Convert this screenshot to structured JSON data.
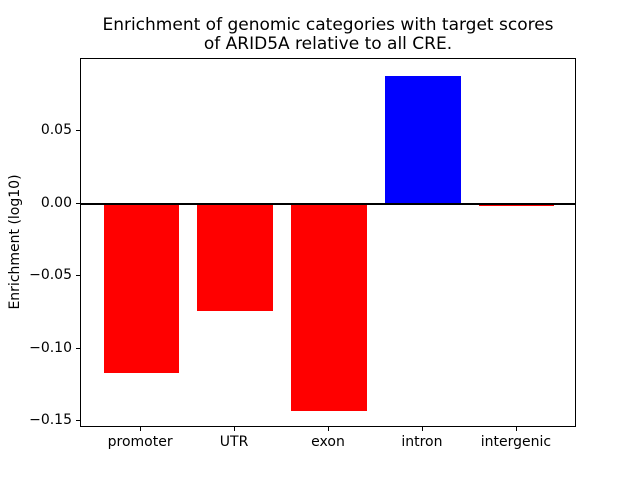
{
  "figure": {
    "title_line1": "Enrichment of genomic categories with target scores",
    "title_line2": "of ARID5A relative to all CRE.",
    "ylabel": "Enrichment (log10)",
    "background": "#ffffff",
    "spine_color": "#000000",
    "zero_line_color": "#000000"
  },
  "chart_data": {
    "type": "bar",
    "title": "Enrichment of genomic categories with target scores of ARID5A relative to all CRE.",
    "xlabel": "",
    "ylabel": "Enrichment (log10)",
    "categories": [
      "promoter",
      "UTR",
      "exon",
      "intron",
      "intergenic"
    ],
    "values": [
      -0.117,
      -0.074,
      -0.143,
      0.088,
      -0.002
    ],
    "bar_colors": [
      "#ff0000",
      "#ff0000",
      "#ff0000",
      "#0000ff",
      "#ff0000"
    ],
    "bar_width": 0.8,
    "xlim": [
      -0.64,
      4.64
    ],
    "ylim": [
      -0.1546,
      0.0996
    ],
    "ytick_values": [
      0.05,
      0.0,
      -0.05,
      -0.1,
      -0.15
    ],
    "ytick_labels": [
      "0.05",
      "0.00",
      "−0.05",
      "−0.10",
      "−0.15"
    ],
    "zero_line": true,
    "grid": false,
    "legend": "none"
  }
}
